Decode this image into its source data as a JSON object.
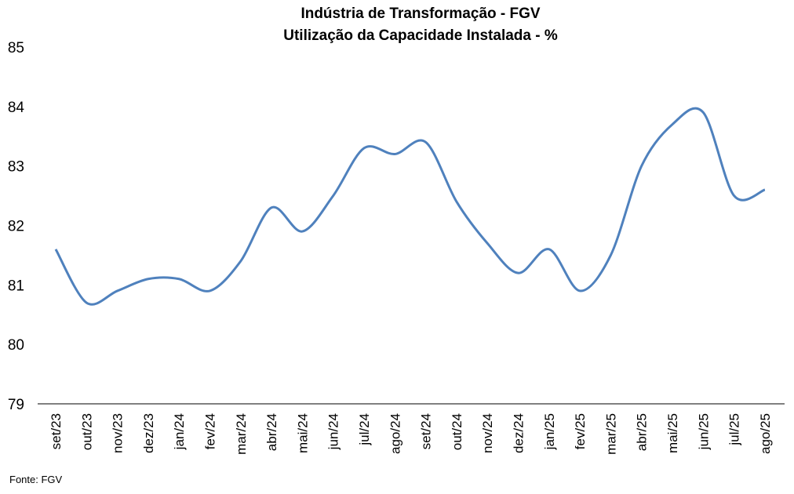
{
  "chart_data": {
    "type": "line",
    "title": "Indústria de Transformação - FGV",
    "subtitle": "Utilização da Capacidade Instalada - %",
    "xlabel": "",
    "ylabel": "",
    "ylim": [
      79,
      85
    ],
    "yticks": [
      "79",
      "80",
      "81",
      "82",
      "83",
      "84",
      "85"
    ],
    "grid": false,
    "categories": [
      "set/23",
      "out/23",
      "nov/23",
      "dez/23",
      "jan/24",
      "fev/24",
      "mar/24",
      "abr/24",
      "mai/24",
      "jun/24",
      "jul/24",
      "ago/24",
      "set/24",
      "out/24",
      "nov/24",
      "dez/24",
      "jan/25",
      "fev/25",
      "mar/25",
      "abr/25",
      "mai/25",
      "jun/25",
      "jul/25",
      "ago/25"
    ],
    "series": [
      {
        "color": "#4f81bd",
        "values": [
          81.6,
          80.7,
          80.9,
          81.1,
          81.1,
          80.9,
          81.4,
          82.3,
          81.9,
          82.5,
          83.3,
          83.2,
          83.4,
          82.4,
          81.7,
          81.2,
          81.6,
          80.9,
          81.5,
          83.0,
          83.7,
          83.9,
          82.5,
          82.6
        ]
      }
    ]
  },
  "source": "Fonte: FGV"
}
